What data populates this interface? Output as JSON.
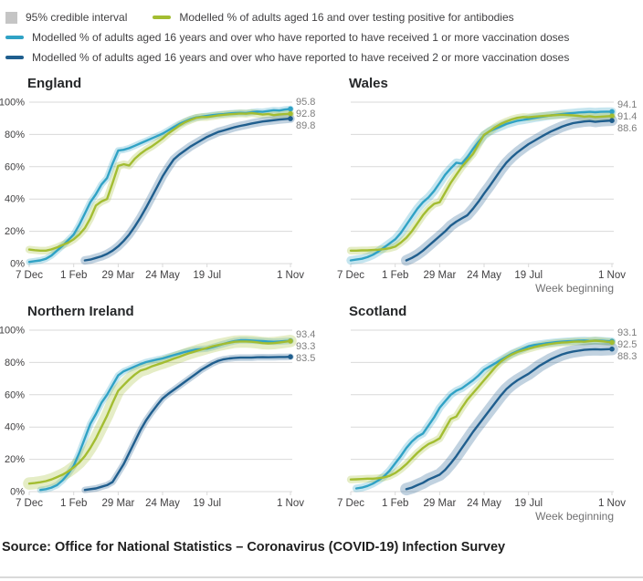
{
  "legend": {
    "credible_interval": "95% credible interval",
    "antibodies": "Modelled % of adults aged 16 and over testing positive for antibodies",
    "dose1": "Modelled % of adults aged 16 years and over who have reported to have received 1 or more vaccination doses",
    "dose2": "Modelled % of adults aged 16 years and over who have reported to have received 2 or more vaccination doses"
  },
  "colors": {
    "antibodies": "#a3bd31",
    "dose1": "#30a2c5",
    "dose2": "#1f5e8e",
    "band_grey": "#c5c5c5",
    "grid": "#d9d9d9",
    "axis_text": "#414042",
    "end_label": "#7e7e7e",
    "muted": "#707071"
  },
  "source": "Source: Office for National Statistics – Coronavirus (COVID-19) Infection Survey",
  "x_axis": {
    "label": "Week beginning",
    "tick_labels": [
      "7 Dec",
      "1 Feb",
      "29 Mar",
      "24 May",
      "19 Jul",
      "1 Nov"
    ],
    "tick_weeks": [
      0,
      8,
      16,
      24,
      32,
      47
    ],
    "weeks_total": 47
  },
  "y_axis": {
    "tick_labels": [
      "0%",
      "20%",
      "40%",
      "60%",
      "80%",
      "100%"
    ],
    "min": 0,
    "max": 100
  },
  "chart_data": [
    {
      "type": "line",
      "title": "England",
      "show_y_labels": true,
      "show_week_label": false,
      "series": [
        {
          "name": "1 or more vaccination doses",
          "key": "dose1",
          "end_label": "95.8",
          "band": 1.2,
          "values": [
            1,
            1.5,
            2,
            3,
            5,
            8,
            11,
            14.5,
            18,
            24,
            31,
            38,
            43,
            49,
            53,
            62,
            70,
            70.5,
            71.5,
            73,
            74.5,
            76,
            77.5,
            79,
            80.5,
            82.5,
            84.5,
            86.5,
            88,
            89.5,
            90.5,
            91,
            91.5,
            92,
            92.3,
            92.6,
            93,
            93.2,
            93.4,
            93.3,
            93.8,
            94.2,
            94,
            94.5,
            95,
            94.8,
            95.4,
            95.8
          ]
        },
        {
          "name": "Testing positive for antibodies",
          "key": "antibodies",
          "end_label": "92.8",
          "band": 1.5,
          "values": [
            8.7,
            8.3,
            8,
            8,
            8.8,
            10,
            11.5,
            13,
            15,
            18,
            22,
            28,
            36,
            38.5,
            40,
            50,
            60.5,
            61.5,
            60.8,
            65,
            68,
            70.5,
            72.5,
            75,
            77.5,
            80.5,
            83,
            85.5,
            87.5,
            89,
            90.3,
            90.8,
            90.8,
            91.3,
            91.8,
            92.2,
            92.5,
            92.7,
            93,
            92.8,
            93.2,
            92.8,
            92.3,
            92.6,
            92,
            92.4,
            92.6,
            92.8
          ]
        },
        {
          "name": "2 or more vaccination doses",
          "key": "dose2",
          "end_label": "89.8",
          "band": 1.8,
          "values": [
            null,
            null,
            null,
            null,
            null,
            null,
            null,
            null,
            null,
            null,
            2,
            2.5,
            3.5,
            4.5,
            6,
            8,
            10.7,
            14,
            18,
            23,
            28.5,
            34.5,
            41,
            47.5,
            54,
            59.5,
            64.5,
            67.5,
            70,
            72.5,
            74.5,
            76.5,
            78.5,
            80,
            81.5,
            82.5,
            83.5,
            84.5,
            85.3,
            86,
            86.8,
            87.4,
            88,
            88.4,
            88.8,
            89.2,
            89.5,
            89.8
          ]
        }
      ]
    },
    {
      "type": "line",
      "title": "Wales",
      "show_y_labels": false,
      "show_week_label": true,
      "series": [
        {
          "name": "1 or more vaccination doses",
          "key": "dose1",
          "end_label": "94.1",
          "band": 1.8,
          "values": [
            2,
            2.5,
            3,
            4,
            5.5,
            7.5,
            10,
            12.5,
            15,
            19,
            24,
            29,
            34,
            38,
            41,
            45,
            50,
            55,
            59,
            62.5,
            62,
            66,
            71,
            75.5,
            79.5,
            82,
            83.5,
            85,
            86.5,
            87.5,
            88.5,
            89,
            89.6,
            90.2,
            90.8,
            91.3,
            91.8,
            92.2,
            92.6,
            93,
            93.3,
            93.6,
            93.8,
            94,
            93.8,
            94,
            94.1,
            94.1
          ]
        },
        {
          "name": "Testing positive for antibodies",
          "key": "antibodies",
          "end_label": "91.4",
          "band": 1.5,
          "values": [
            8,
            8,
            8.2,
            8.2,
            8.4,
            8.6,
            9,
            9.5,
            10.5,
            13,
            16,
            20,
            25,
            30,
            34,
            37,
            38,
            44,
            50,
            55,
            60,
            64,
            68,
            74,
            79.8,
            82,
            84.5,
            86.5,
            88,
            89.3,
            90.3,
            90.8,
            90.6,
            91,
            91.3,
            91.5,
            91.8,
            92,
            92.2,
            92,
            91.8,
            91.5,
            91,
            91.3,
            90.8,
            91,
            91.2,
            91.4
          ]
        },
        {
          "name": "2 or more vaccination doses",
          "key": "dose2",
          "end_label": "88.6",
          "band": 2.5,
          "values": [
            null,
            null,
            null,
            null,
            null,
            null,
            null,
            null,
            null,
            null,
            2,
            3.5,
            5.5,
            8,
            11,
            14,
            17,
            20,
            23.5,
            26,
            28,
            30,
            34,
            38.5,
            43.4,
            48,
            53,
            58,
            62.5,
            66,
            69,
            71.5,
            74,
            76,
            78,
            80,
            81.8,
            83.3,
            84.8,
            86,
            87,
            87.5,
            88,
            88.3,
            87.8,
            88.2,
            88.4,
            88.6
          ]
        }
      ]
    },
    {
      "type": "line",
      "title": "Northern Ireland",
      "show_y_labels": true,
      "show_week_label": false,
      "series": [
        {
          "name": "1 or more vaccination doses",
          "key": "dose1",
          "end_label": "93.4",
          "band": 1.2,
          "values": [
            null,
            null,
            1,
            1.5,
            2.5,
            4,
            7,
            11,
            16,
            24,
            33,
            42,
            48,
            55,
            60,
            66,
            72,
            74.5,
            76,
            77.5,
            79,
            80.2,
            81,
            81.8,
            82.5,
            83.5,
            84.5,
            85.5,
            86.5,
            87.3,
            88,
            88.3,
            88.6,
            89.5,
            90.5,
            91.5,
            92.5,
            93.3,
            93.8,
            93.8,
            93.6,
            93.4,
            93.2,
            93,
            92.8,
            93,
            93.2,
            93.4
          ]
        },
        {
          "name": "Testing positive for antibodies",
          "key": "antibodies",
          "end_label": "93.3",
          "band": 3,
          "values": [
            5,
            5.3,
            5.8,
            6.5,
            7.5,
            9,
            10.5,
            12.5,
            15,
            18,
            22,
            27,
            33,
            40,
            47,
            55,
            62.5,
            66,
            69.5,
            72.5,
            75,
            76,
            77.5,
            78.7,
            79.8,
            81,
            82.3,
            83.5,
            84.8,
            86,
            87,
            88,
            89,
            90,
            90.8,
            91.5,
            92.2,
            92.8,
            93,
            93,
            92.8,
            92.5,
            92,
            91.8,
            92,
            92.4,
            92.8,
            93.3
          ]
        },
        {
          "name": "2 or more vaccination doses",
          "key": "dose2",
          "end_label": "83.5",
          "band": 1.2,
          "values": [
            null,
            null,
            null,
            null,
            null,
            null,
            null,
            null,
            null,
            null,
            1,
            1.5,
            2,
            3,
            4,
            6,
            11.5,
            17,
            24,
            31,
            38,
            44,
            49,
            53.5,
            57.7,
            60.5,
            63,
            65.5,
            68,
            70.5,
            73,
            75.5,
            77.5,
            79.5,
            81,
            82,
            82.5,
            82.8,
            83,
            83,
            83,
            83.2,
            83.3,
            83.2,
            83.3,
            83.4,
            83.4,
            83.5
          ]
        }
      ]
    },
    {
      "type": "line",
      "title": "Scotland",
      "show_y_labels": false,
      "show_week_label": true,
      "series": [
        {
          "name": "1 or more vaccination doses",
          "key": "dose1",
          "end_label": "93.1",
          "band": 1.5,
          "values": [
            null,
            2,
            2.5,
            3.5,
            5,
            7,
            9.5,
            13,
            17.5,
            22,
            27,
            31,
            34,
            36,
            41,
            46,
            52,
            56,
            60,
            62.5,
            64,
            66.5,
            69,
            72,
            75.5,
            77.5,
            79.5,
            81.5,
            83.5,
            85.5,
            87,
            88.5,
            90,
            90.8,
            91.3,
            91.8,
            92.2,
            92.6,
            92.9,
            93.1,
            93.3,
            93.5,
            93.6,
            93.4,
            93.6,
            93.5,
            93.3,
            93.1
          ]
        },
        {
          "name": "Testing positive for antibodies",
          "key": "antibodies",
          "end_label": "92.5",
          "band": 1.5,
          "values": [
            7.5,
            7.6,
            7.8,
            8,
            8,
            8.3,
            8.8,
            9.8,
            11.5,
            14,
            17,
            20.5,
            24,
            27,
            29.5,
            31,
            33,
            39,
            45,
            46.5,
            52,
            57,
            61,
            65,
            69,
            73,
            77,
            80.5,
            83,
            85,
            86.5,
            87.5,
            88.5,
            89.5,
            90.3,
            91,
            91.5,
            92,
            92.3,
            92.5,
            92.8,
            93,
            92.8,
            93.2,
            93.5,
            93.2,
            92.8,
            92.5
          ]
        },
        {
          "name": "2 or more vaccination doses",
          "key": "dose2",
          "end_label": "88.3",
          "band": 3,
          "values": [
            null,
            null,
            null,
            null,
            null,
            null,
            null,
            null,
            null,
            null,
            1.5,
            2.5,
            4,
            5.5,
            7.5,
            9,
            10.5,
            13.5,
            17.5,
            22,
            27,
            32,
            37,
            41.5,
            46,
            50.5,
            55,
            59.5,
            63.5,
            66.5,
            69,
            71,
            73,
            75.5,
            78,
            80,
            82,
            83.5,
            85,
            86,
            86.8,
            87.3,
            87.8,
            88,
            88.2,
            88,
            88.2,
            88.3
          ]
        }
      ]
    }
  ]
}
